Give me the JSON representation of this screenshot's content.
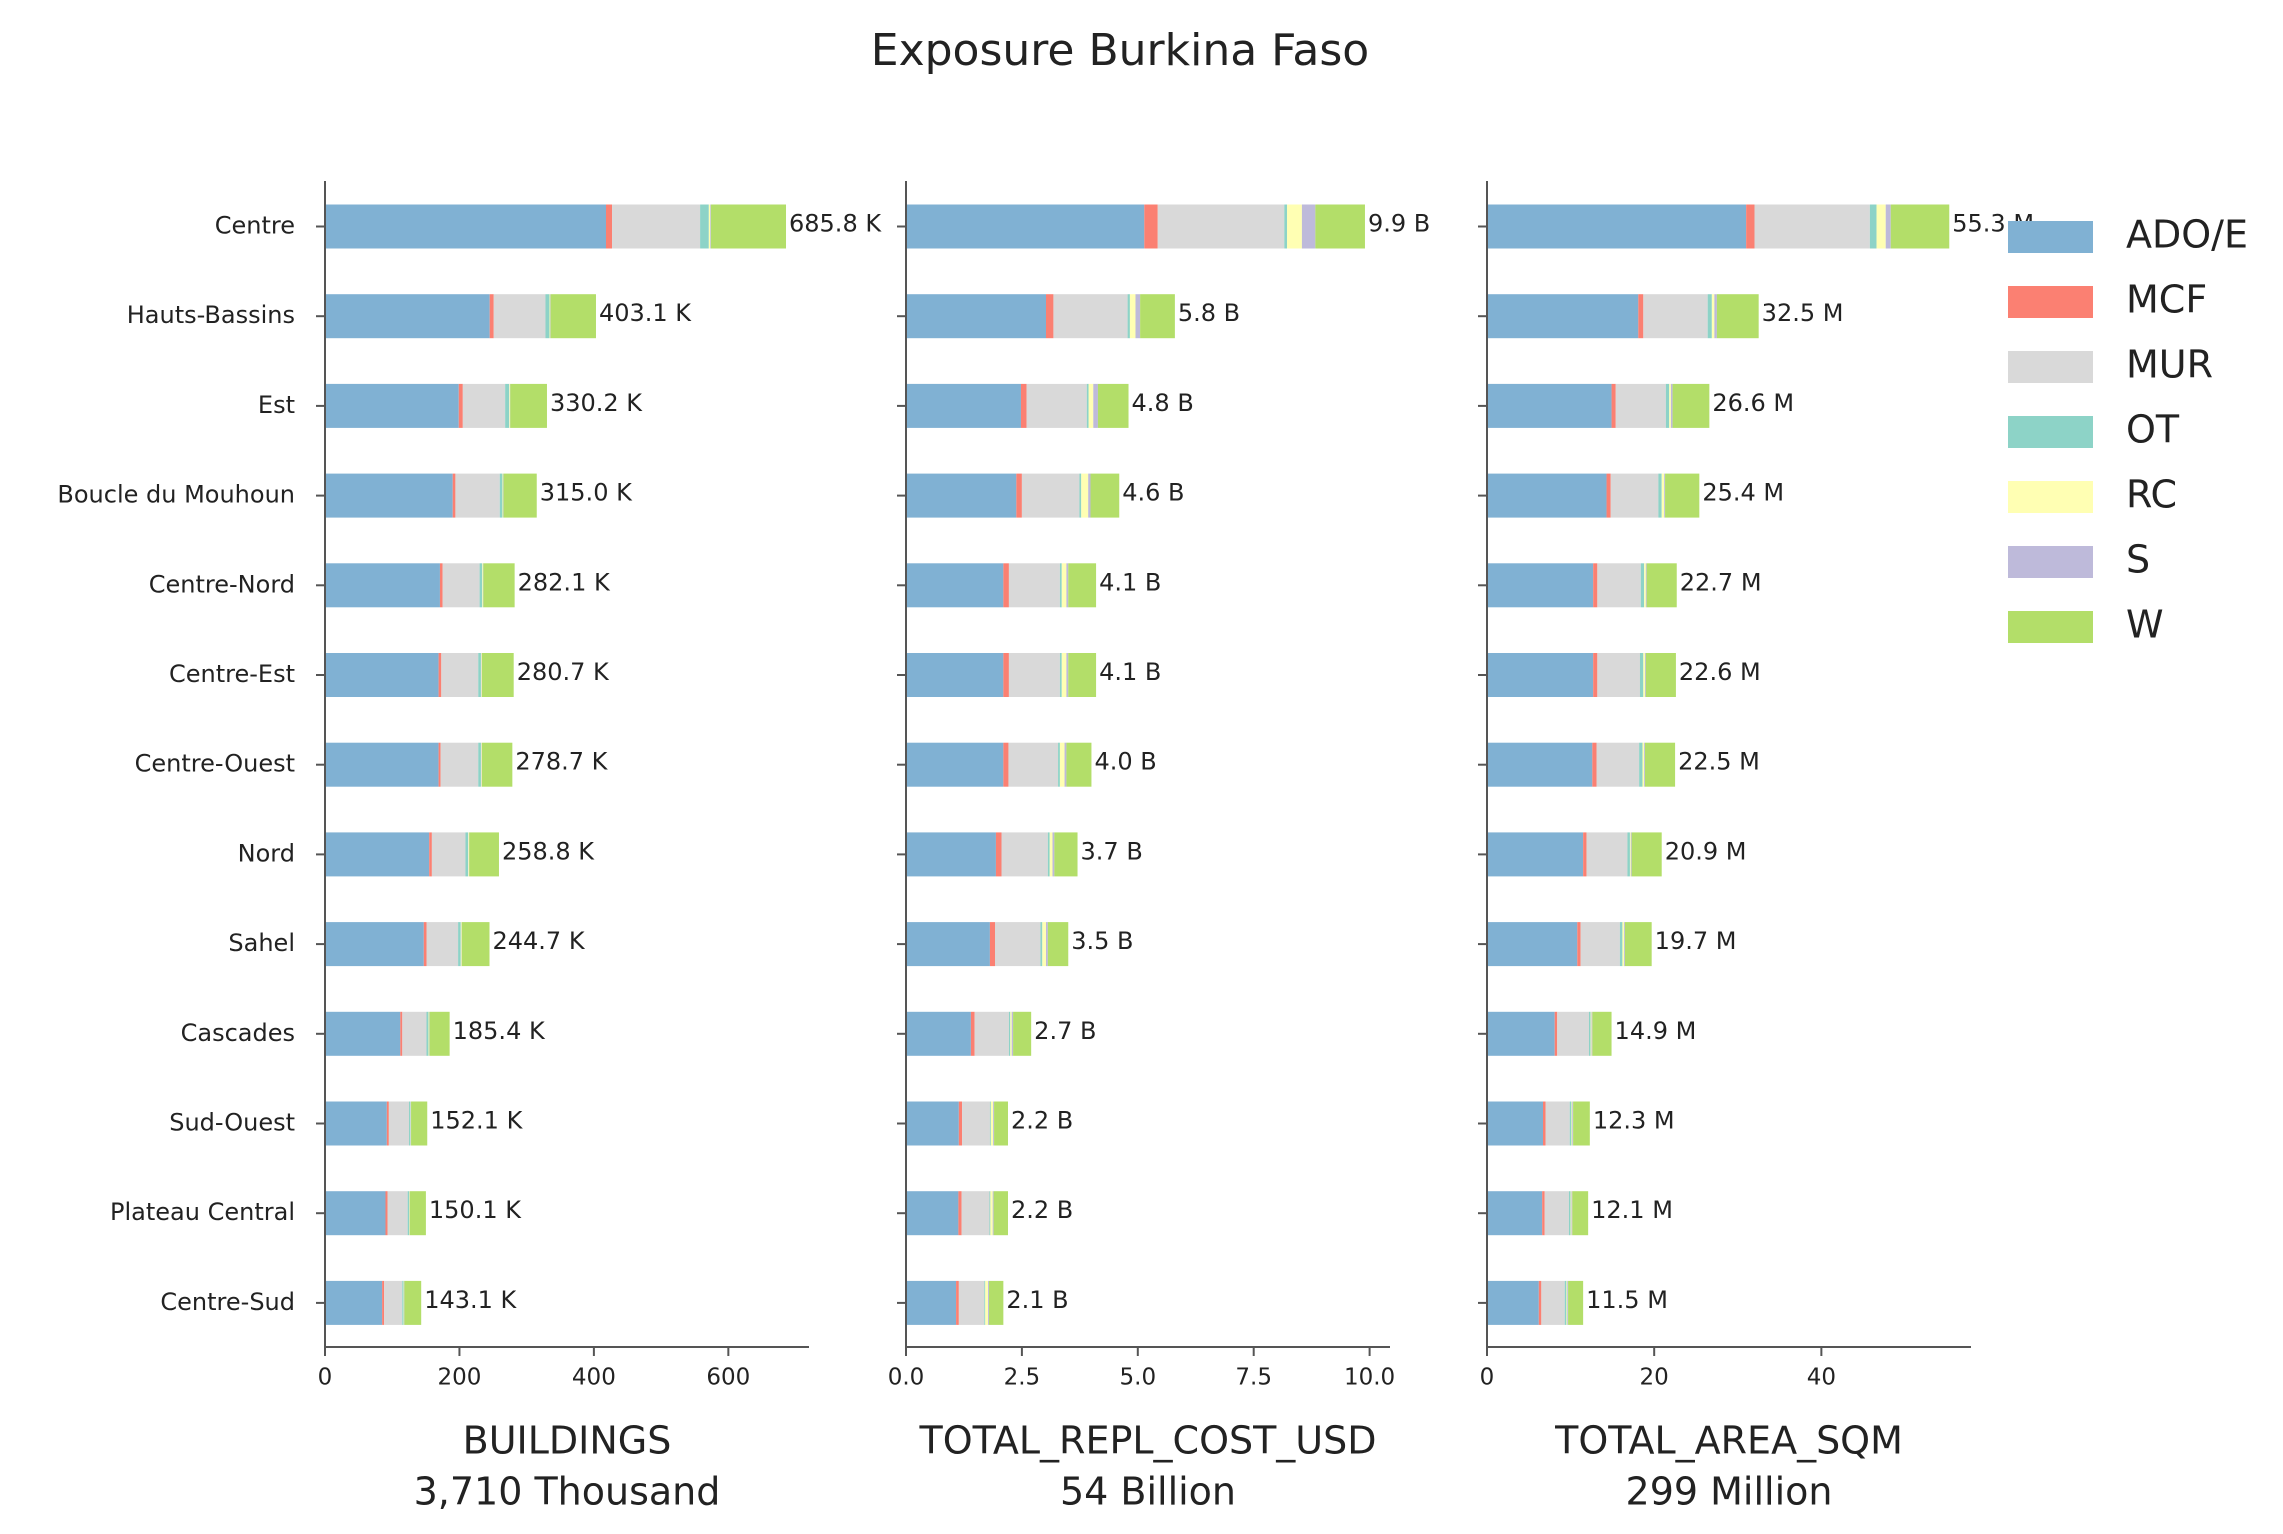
{
  "title": "Exposure Burkina Faso",
  "chart_data": {
    "type": "bar",
    "orientation": "horizontal",
    "stacked": true,
    "legend": "right",
    "categories": [
      "Centre",
      "Hauts-Bassins",
      "Est",
      "Boucle du Mouhoun",
      "Centre-Nord",
      "Centre-Est",
      "Centre-Ouest",
      "Nord",
      "Sahel",
      "Cascades",
      "Sud-Ouest",
      "Plateau Central",
      "Centre-Sud"
    ],
    "series": [
      {
        "name": "ADO/E",
        "color": "#80b1d3"
      },
      {
        "name": "MCF",
        "color": "#fb8072"
      },
      {
        "name": "MUR",
        "color": "#d9d9d9"
      },
      {
        "name": "OT",
        "color": "#8dd3c7"
      },
      {
        "name": "RC",
        "color": "#ffffb3"
      },
      {
        "name": "S",
        "color": "#bebada"
      },
      {
        "name": "W",
        "color": "#b3de69"
      }
    ],
    "panels": [
      {
        "xlabel": "BUILDINGS",
        "xsubtitle": "3,710 Thousand",
        "xlim": [
          0,
          720
        ],
        "xticks": [
          0,
          200,
          400,
          600
        ],
        "values": [
          [
            418,
            245,
            199,
            190,
            171,
            169,
            169,
            155,
            147,
            112,
            92,
            90,
            85
          ],
          [
            9,
            6,
            6,
            4,
            4,
            4,
            3,
            4,
            4,
            3,
            3,
            3,
            3
          ],
          [
            131,
            77,
            63,
            66,
            55,
            55,
            56,
            50,
            47,
            36,
            30,
            30,
            27
          ],
          [
            13,
            6,
            6,
            4,
            4,
            4,
            4,
            4,
            4,
            3,
            2,
            2,
            2
          ],
          [
            2,
            1,
            1,
            1,
            1,
            1,
            1,
            1,
            1,
            1,
            0.5,
            0.5,
            0.5
          ],
          [
            1,
            0.5,
            0.5,
            0.5,
            0.5,
            0.5,
            0.5,
            0.5,
            0.5,
            0.5,
            0.5,
            0.5,
            0.5
          ],
          [
            111.8,
            67.6,
            54.7,
            49.5,
            46.6,
            47.2,
            45.2,
            44.3,
            41.2,
            29.9,
            24.1,
            24.1,
            25.1
          ]
        ],
        "totals": [
          685.8,
          403.1,
          330.2,
          315.0,
          282.1,
          280.7,
          278.7,
          258.8,
          244.7,
          185.4,
          152.1,
          150.1,
          143.1
        ],
        "total_labels": [
          "685.8 K",
          "403.1 K",
          "330.2 K",
          "315.0 K",
          "282.1 K",
          "280.7 K",
          "278.7 K",
          "258.8 K",
          "244.7 K",
          "185.4 K",
          "152.1 K",
          "150.1 K",
          "143.1 K"
        ]
      },
      {
        "xlabel": "TOTAL_REPL_COST_USD",
        "xsubtitle": "54 Billion",
        "xlim": [
          0,
          10.44
        ],
        "xticks": [
          {
            "value": 0,
            "label": "0.0"
          },
          {
            "value": 2.5,
            "label": "2.5"
          },
          {
            "value": 5,
            "label": "5.0"
          },
          {
            "value": 7.5,
            "label": "7.5"
          },
          {
            "value": 10,
            "label": "10.0"
          }
        ],
        "values": [
          [
            5.14,
            3.02,
            2.48,
            2.38,
            2.1,
            2.1,
            2.1,
            1.94,
            1.81,
            1.4,
            1.14,
            1.13,
            1.08
          ],
          [
            0.29,
            0.16,
            0.12,
            0.12,
            0.12,
            0.12,
            0.11,
            0.12,
            0.11,
            0.08,
            0.07,
            0.07,
            0.06
          ],
          [
            2.73,
            1.6,
            1.3,
            1.24,
            1.1,
            1.1,
            1.07,
            1.0,
            0.98,
            0.74,
            0.6,
            0.6,
            0.55
          ],
          [
            0.06,
            0.05,
            0.04,
            0.04,
            0.04,
            0.04,
            0.04,
            0.04,
            0.04,
            0.03,
            0.02,
            0.02,
            0.02
          ],
          [
            0.32,
            0.12,
            0.1,
            0.15,
            0.1,
            0.1,
            0.1,
            0.06,
            0.08,
            0.03,
            0.05,
            0.05,
            0.06
          ],
          [
            0.29,
            0.1,
            0.1,
            0.05,
            0.04,
            0.04,
            0.04,
            0.04,
            0.04,
            0.03,
            0.02,
            0.02,
            0.02
          ],
          [
            1.07,
            0.75,
            0.66,
            0.62,
            0.6,
            0.6,
            0.54,
            0.5,
            0.44,
            0.39,
            0.3,
            0.31,
            0.31
          ]
        ],
        "totals": [
          9.9,
          5.8,
          4.8,
          4.6,
          4.1,
          4.1,
          4.0,
          3.7,
          3.5,
          2.7,
          2.2,
          2.2,
          2.1
        ],
        "total_labels": [
          "9.9 B",
          "5.8 B",
          "4.8 B",
          "4.6 B",
          "4.1 B",
          "4.1 B",
          "4.0 B",
          "3.7 B",
          "3.5 B",
          "2.7 B",
          "2.2 B",
          "2.2 B",
          "2.1 B"
        ]
      },
      {
        "xlabel": "TOTAL_AREA_SQM",
        "xsubtitle": "299 Million",
        "xlim": [
          0,
          57.9
        ],
        "xticks": [
          0,
          20,
          40
        ],
        "values": [
          [
            31.0,
            18.1,
            14.9,
            14.3,
            12.7,
            12.7,
            12.6,
            11.5,
            10.8,
            8.1,
            6.7,
            6.6,
            6.2
          ],
          [
            1.0,
            0.6,
            0.5,
            0.5,
            0.5,
            0.5,
            0.5,
            0.4,
            0.4,
            0.3,
            0.3,
            0.3,
            0.3
          ],
          [
            13.8,
            7.7,
            6.0,
            5.7,
            5.2,
            5.1,
            5.1,
            4.9,
            4.7,
            3.8,
            2.9,
            2.9,
            2.8
          ],
          [
            0.8,
            0.5,
            0.4,
            0.4,
            0.4,
            0.4,
            0.4,
            0.3,
            0.3,
            0.2,
            0.2,
            0.2,
            0.2
          ],
          [
            1.1,
            0.3,
            0.2,
            0.3,
            0.2,
            0.2,
            0.2,
            0.1,
            0.2,
            0.1,
            0.1,
            0.1,
            0.1
          ],
          [
            0.6,
            0.3,
            0.2,
            0.1,
            0.1,
            0.1,
            0.1,
            0.1,
            0.1,
            0.1,
            0.1,
            0.1,
            0.1
          ],
          [
            7.0,
            5.0,
            4.4,
            4.1,
            3.6,
            3.6,
            3.6,
            3.6,
            3.2,
            2.3,
            2.0,
            1.9,
            1.8
          ]
        ],
        "totals": [
          55.3,
          32.5,
          26.6,
          25.4,
          22.7,
          22.6,
          22.5,
          20.9,
          19.7,
          14.9,
          12.3,
          12.1,
          11.5
        ],
        "total_labels": [
          "55.3 M",
          "32.5 M",
          "26.6 M",
          "25.4 M",
          "22.7 M",
          "22.6 M",
          "22.5 M",
          "20.9 M",
          "19.7 M",
          "14.9 M",
          "12.3 M",
          "12.1 M",
          "11.5 M"
        ]
      }
    ]
  }
}
